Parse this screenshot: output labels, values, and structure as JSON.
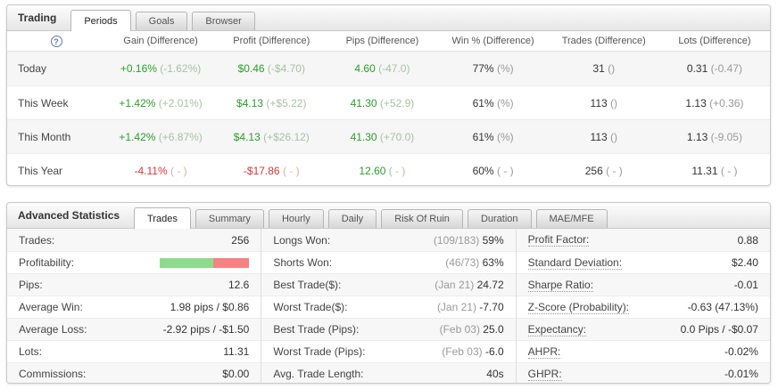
{
  "colors": {
    "green": "#2b9e2b",
    "red": "#d23939",
    "dark": "#333333",
    "gray": "#9a9a9a",
    "faded_green": "#a6c2a6",
    "faded_red": "#dfabab",
    "bar_green": "#8ddc8d",
    "bar_red": "#f58282"
  },
  "trading": {
    "title": "Trading",
    "help_icon": "?",
    "tabs": [
      {
        "label": "Periods",
        "active": true
      },
      {
        "label": "Goals",
        "active": false
      },
      {
        "label": "Browser",
        "active": false
      }
    ],
    "columns": [
      "Gain (Difference)",
      "Profit (Difference)",
      "Pips (Difference)",
      "Win % (Difference)",
      "Trades (Difference)",
      "Lots (Difference)"
    ],
    "rows": [
      {
        "label": "Today",
        "cells": [
          {
            "value": "+0.16%",
            "diff": "(-1.62%)",
            "value_color": "green",
            "diff_color": "faded_green"
          },
          {
            "value": "$0.46",
            "diff": "(-$4.70)",
            "value_color": "green",
            "diff_color": "faded_green"
          },
          {
            "value": "4.60",
            "diff": "(-47.0)",
            "value_color": "green",
            "diff_color": "faded_green"
          },
          {
            "value": "77%",
            "diff": "(%)",
            "value_color": "dark",
            "diff_color": "gray"
          },
          {
            "value": "31",
            "diff": "()",
            "value_color": "dark",
            "diff_color": "gray"
          },
          {
            "value": "0.31",
            "diff": "(-0.47)",
            "value_color": "dark",
            "diff_color": "gray"
          }
        ]
      },
      {
        "label": "This Week",
        "cells": [
          {
            "value": "+1.42%",
            "diff": "(+2.01%)",
            "value_color": "green",
            "diff_color": "faded_green"
          },
          {
            "value": "$4.13",
            "diff": "(+$5.22)",
            "value_color": "green",
            "diff_color": "faded_green"
          },
          {
            "value": "41.30",
            "diff": "(+52.9)",
            "value_color": "green",
            "diff_color": "faded_green"
          },
          {
            "value": "61%",
            "diff": "(%)",
            "value_color": "dark",
            "diff_color": "gray"
          },
          {
            "value": "113",
            "diff": "()",
            "value_color": "dark",
            "diff_color": "gray"
          },
          {
            "value": "1.13",
            "diff": "(+0.36)",
            "value_color": "dark",
            "diff_color": "gray"
          }
        ]
      },
      {
        "label": "This Month",
        "cells": [
          {
            "value": "+1.42%",
            "diff": "(+6.87%)",
            "value_color": "green",
            "diff_color": "faded_green"
          },
          {
            "value": "$4.13",
            "diff": "(+$26.12)",
            "value_color": "green",
            "diff_color": "faded_green"
          },
          {
            "value": "41.30",
            "diff": "(+70.0)",
            "value_color": "green",
            "diff_color": "faded_green"
          },
          {
            "value": "61%",
            "diff": "(%)",
            "value_color": "dark",
            "diff_color": "gray"
          },
          {
            "value": "113",
            "diff": "()",
            "value_color": "dark",
            "diff_color": "gray"
          },
          {
            "value": "1.13",
            "diff": "(-9.05)",
            "value_color": "dark",
            "diff_color": "gray"
          }
        ]
      },
      {
        "label": "This Year",
        "cells": [
          {
            "value": "-4.11%",
            "diff": "( - )",
            "value_color": "red",
            "diff_color": "faded_red"
          },
          {
            "value": "-$17.86",
            "diff": "( - )",
            "value_color": "red",
            "diff_color": "faded_red"
          },
          {
            "value": "12.60",
            "diff": "( - )",
            "value_color": "green",
            "diff_color": "faded_green"
          },
          {
            "value": "60%",
            "diff": "( - )",
            "value_color": "dark",
            "diff_color": "gray"
          },
          {
            "value": "256",
            "diff": "( - )",
            "value_color": "dark",
            "diff_color": "gray"
          },
          {
            "value": "11.31",
            "diff": "( - )",
            "value_color": "dark",
            "diff_color": "gray"
          }
        ]
      }
    ]
  },
  "stats": {
    "title": "Advanced Statistics",
    "tabs": [
      {
        "label": "Trades",
        "active": true
      },
      {
        "label": "Summary",
        "active": false
      },
      {
        "label": "Hourly",
        "active": false
      },
      {
        "label": "Daily",
        "active": false
      },
      {
        "label": "Risk Of Ruin",
        "active": false
      },
      {
        "label": "Duration",
        "active": false
      },
      {
        "label": "MAE/MFE",
        "active": false
      }
    ],
    "columns": [
      {
        "dotted": false,
        "rows": [
          {
            "label": "Trades:",
            "prefix": "",
            "value": "256"
          },
          {
            "label": "Profitability:",
            "bar": {
              "green_pct": 60,
              "red_pct": 40
            }
          },
          {
            "label": "Pips:",
            "prefix": "",
            "value": "12.6"
          },
          {
            "label": "Average Win:",
            "prefix": "",
            "value": "1.98 pips / $0.86"
          },
          {
            "label": "Average Loss:",
            "prefix": "",
            "value": "-2.92 pips / -$1.50"
          },
          {
            "label": "Lots:",
            "prefix": "",
            "value": "11.31"
          },
          {
            "label": "Commissions:",
            "prefix": "",
            "value": "$0.00"
          }
        ]
      },
      {
        "dotted": false,
        "rows": [
          {
            "label": "Longs Won:",
            "prefix": "(109/183)",
            "value": "59%"
          },
          {
            "label": "Shorts Won:",
            "prefix": "(46/73)",
            "value": "63%"
          },
          {
            "label": "Best Trade($):",
            "prefix": "(Jan 21)",
            "value": "24.72"
          },
          {
            "label": "Worst Trade($):",
            "prefix": "(Jan 21)",
            "value": "-7.70"
          },
          {
            "label": "Best Trade (Pips):",
            "prefix": "(Feb 03)",
            "value": "25.0"
          },
          {
            "label": "Worst Trade (Pips):",
            "prefix": "(Feb 03)",
            "value": "-6.0"
          },
          {
            "label": "Avg. Trade Length:",
            "prefix": "",
            "value": "40s"
          }
        ]
      },
      {
        "dotted": true,
        "rows": [
          {
            "label": "Profit Factor:",
            "prefix": "",
            "value": "0.88"
          },
          {
            "label": "Standard Deviation:",
            "prefix": "",
            "value": "$2.40"
          },
          {
            "label": "Sharpe Ratio:",
            "prefix": "",
            "value": "-0.01"
          },
          {
            "label": "Z-Score (Probability):",
            "prefix": "",
            "value": "-0.63 (47.13%)"
          },
          {
            "label": "Expectancy:",
            "prefix": "",
            "value": "0.0 Pips / -$0.07"
          },
          {
            "label": "AHPR:",
            "prefix": "",
            "value": "-0.02%"
          },
          {
            "label": "GHPR:",
            "prefix": "",
            "value": "-0.01%"
          }
        ]
      }
    ]
  }
}
